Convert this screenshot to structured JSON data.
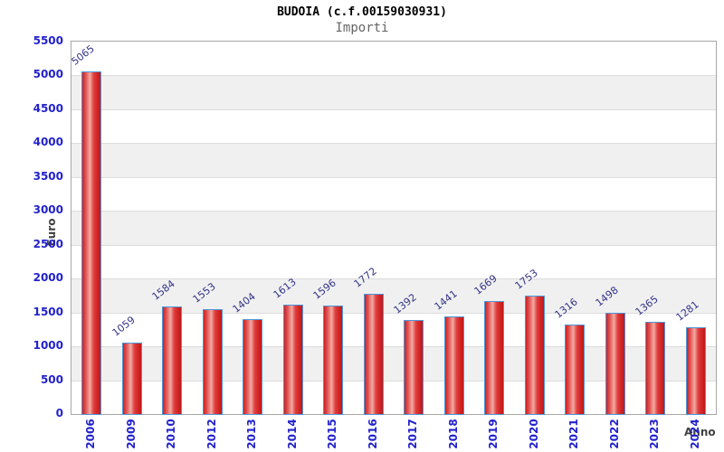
{
  "page": {
    "title": "BUDOIA (c.f.00159030931)",
    "subtitle": "Importi"
  },
  "chart_data": {
    "type": "bar",
    "title": "BUDOIA (c.f.00159030931)",
    "subtitle": "Importi",
    "xlabel": "Anno",
    "ylabel": "Euro",
    "categories": [
      "2006",
      "2009",
      "2010",
      "2012",
      "2013",
      "2014",
      "2015",
      "2016",
      "2017",
      "2018",
      "2019",
      "2020",
      "2021",
      "2022",
      "2023",
      "2024"
    ],
    "values": [
      5065,
      1059,
      1584,
      1553,
      1404,
      1613,
      1596,
      1772,
      1392,
      1441,
      1669,
      1753,
      1316,
      1498,
      1365,
      1281
    ],
    "ylim": [
      0,
      5500
    ],
    "ytick_step": 500,
    "yticks": [
      0,
      500,
      1000,
      1500,
      2000,
      2500,
      3000,
      3500,
      4000,
      4500,
      5000,
      5500
    ],
    "grid": "horizontal-on",
    "bands": "alternating",
    "legend": "none",
    "colors": {
      "bar_fill": "#d42a2a",
      "bar_highlight": "#f2aba3",
      "bar_border": "#4e96d9",
      "tick_label": "#2222cc",
      "value_label": "#333388",
      "axis_title": "#404040",
      "subtitle_text": "#666666",
      "band_gray": "#f0f0f0",
      "gridline": "#dcdcdc",
      "plot_border": "#a8a8a8"
    }
  }
}
